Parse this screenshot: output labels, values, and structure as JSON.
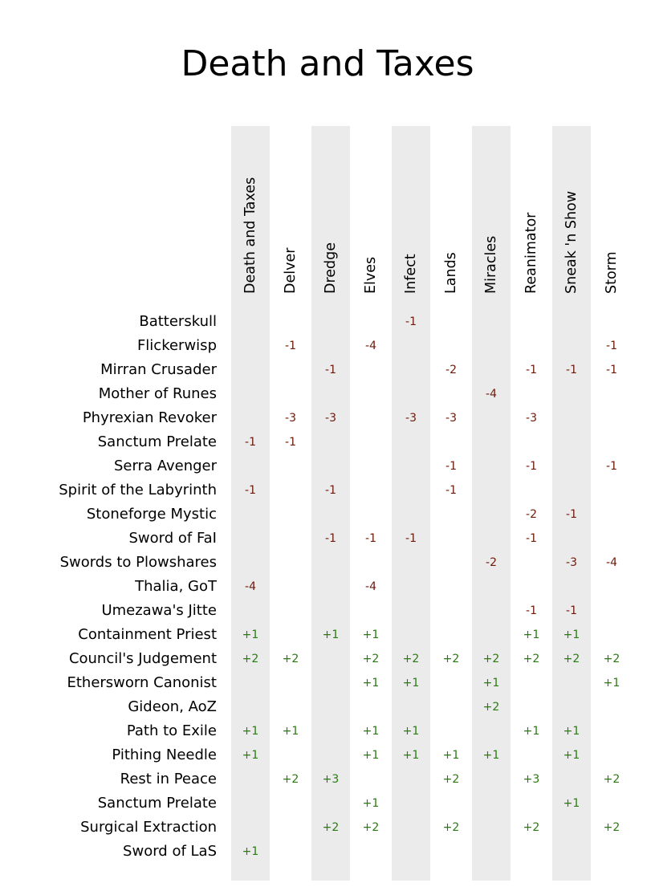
{
  "chart_data": {
    "type": "table",
    "title": "Death and Taxes",
    "columns": [
      "Death and Taxes",
      "Delver",
      "Dredge",
      "Elves",
      "Infect",
      "Lands",
      "Miracles",
      "Reanimator",
      "Sneak 'n Show",
      "Storm"
    ],
    "rows": [
      {
        "card": "Batterskull",
        "values": [
          "",
          "",
          "",
          "",
          "-1",
          "",
          "",
          "",
          "",
          ""
        ]
      },
      {
        "card": "Flickerwisp",
        "values": [
          "",
          "-1",
          "",
          "-4",
          "",
          "",
          "",
          "",
          "",
          "-1"
        ]
      },
      {
        "card": "Mirran Crusader",
        "values": [
          "",
          "",
          "-1",
          "",
          "",
          "-2",
          "",
          "-1",
          "-1",
          "-1"
        ]
      },
      {
        "card": "Mother of Runes",
        "values": [
          "",
          "",
          "",
          "",
          "",
          "",
          "-4",
          "",
          "",
          ""
        ]
      },
      {
        "card": "Phyrexian Revoker",
        "values": [
          "",
          "-3",
          "-3",
          "",
          "-3",
          "-3",
          "",
          "-3",
          "",
          ""
        ]
      },
      {
        "card": "Sanctum Prelate",
        "values": [
          "-1",
          "-1",
          "",
          "",
          "",
          "",
          "",
          "",
          "",
          ""
        ]
      },
      {
        "card": "Serra Avenger",
        "values": [
          "",
          "",
          "",
          "",
          "",
          "-1",
          "",
          "-1",
          "",
          "-1"
        ]
      },
      {
        "card": "Spirit of the Labyrinth",
        "values": [
          "-1",
          "",
          "-1",
          "",
          "",
          "-1",
          "",
          "",
          "",
          ""
        ]
      },
      {
        "card": "Stoneforge Mystic",
        "values": [
          "",
          "",
          "",
          "",
          "",
          "",
          "",
          "-2",
          "-1",
          ""
        ]
      },
      {
        "card": "Sword of FaI",
        "values": [
          "",
          "",
          "-1",
          "-1",
          "-1",
          "",
          "",
          "-1",
          "",
          ""
        ]
      },
      {
        "card": "Swords to Plowshares",
        "values": [
          "",
          "",
          "",
          "",
          "",
          "",
          "-2",
          "",
          "-3",
          "-4"
        ]
      },
      {
        "card": "Thalia, GoT",
        "values": [
          "-4",
          "",
          "",
          "-4",
          "",
          "",
          "",
          "",
          "",
          ""
        ]
      },
      {
        "card": "Umezawa's Jitte",
        "values": [
          "",
          "",
          "",
          "",
          "",
          "",
          "",
          "-1",
          "-1",
          ""
        ]
      },
      {
        "card": "Containment Priest",
        "values": [
          "+1",
          "",
          "+1",
          "+1",
          "",
          "",
          "",
          "+1",
          "+1",
          ""
        ]
      },
      {
        "card": "Council's Judgement",
        "values": [
          "+2",
          "+2",
          "",
          "+2",
          "+2",
          "+2",
          "+2",
          "+2",
          "+2",
          "+2"
        ]
      },
      {
        "card": "Ethersworn Canonist",
        "values": [
          "",
          "",
          "",
          "+1",
          "+1",
          "",
          "+1",
          "",
          "",
          "+1"
        ]
      },
      {
        "card": "Gideon, AoZ",
        "values": [
          "",
          "",
          "",
          "",
          "",
          "",
          "+2",
          "",
          "",
          ""
        ]
      },
      {
        "card": "Path to Exile",
        "values": [
          "+1",
          "+1",
          "",
          "+1",
          "+1",
          "",
          "",
          "+1",
          "+1",
          ""
        ]
      },
      {
        "card": "Pithing Needle",
        "values": [
          "+1",
          "",
          "",
          "+1",
          "+1",
          "+1",
          "+1",
          "",
          "+1",
          ""
        ]
      },
      {
        "card": "Rest in Peace",
        "values": [
          "",
          "+2",
          "+3",
          "",
          "",
          "+2",
          "",
          "+3",
          "",
          "+2"
        ]
      },
      {
        "card": "Sanctum Prelate",
        "values": [
          "",
          "",
          "",
          "+1",
          "",
          "",
          "",
          "",
          "+1",
          ""
        ]
      },
      {
        "card": "Surgical Extraction",
        "values": [
          "",
          "",
          "+2",
          "+2",
          "",
          "+2",
          "",
          "+2",
          "",
          "+2"
        ]
      },
      {
        "card": "Sword of LaS",
        "values": [
          "+1",
          "",
          "",
          "",
          "",
          "",
          "",
          "",
          "",
          ""
        ]
      }
    ],
    "colors": {
      "negative": "#6e1a0c",
      "positive": "#2a7a12",
      "band": "#ebebeb"
    }
  }
}
